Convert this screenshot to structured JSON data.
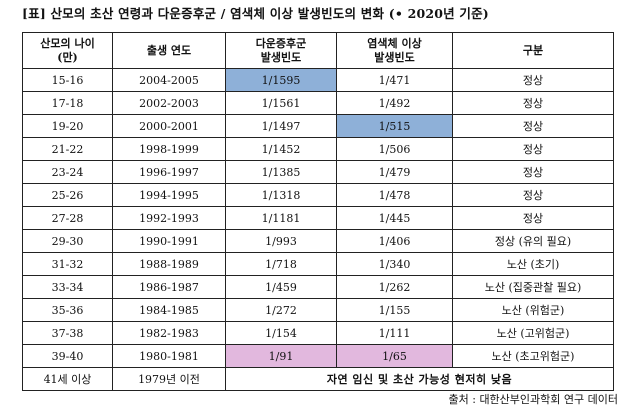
{
  "title": "[표] 산모의 초산 연령과 다운증후군 / 염색체 이상 발생빈도의 변화 (• 2020년 기준)",
  "headers": {
    "age_line1": "산모의 나이",
    "age_line2": "(만)",
    "year": "출생 연도",
    "down_line1": "다운증후군",
    "down_line2": "발생빈도",
    "chrom_line1": "염색체 이상",
    "chrom_line2": "발생빈도",
    "class": "구분"
  },
  "rows": [
    {
      "age": "15-16",
      "year": "2004-2005",
      "down": "1/1595",
      "chrom": "1/471",
      "class": "정상"
    },
    {
      "age": "17-18",
      "year": "2002-2003",
      "down": "1/1561",
      "chrom": "1/492",
      "class": "정상"
    },
    {
      "age": "19-20",
      "year": "2000-2001",
      "down": "1/1497",
      "chrom": "1/515",
      "class": "정상"
    },
    {
      "age": "21-22",
      "year": "1998-1999",
      "down": "1/1452",
      "chrom": "1/506",
      "class": "정상"
    },
    {
      "age": "23-24",
      "year": "1996-1997",
      "down": "1/1385",
      "chrom": "1/479",
      "class": "정상"
    },
    {
      "age": "25-26",
      "year": "1994-1995",
      "down": "1/1318",
      "chrom": "1/478",
      "class": "정상"
    },
    {
      "age": "27-28",
      "year": "1992-1993",
      "down": "1/1181",
      "chrom": "1/445",
      "class": "정상"
    },
    {
      "age": "29-30",
      "year": "1990-1991",
      "down": "1/993",
      "chrom": "1/406",
      "class": "정상 (유의 필요)"
    },
    {
      "age": "31-32",
      "year": "1988-1989",
      "down": "1/718",
      "chrom": "1/340",
      "class": "노산 (초기)"
    },
    {
      "age": "33-34",
      "year": "1986-1987",
      "down": "1/459",
      "chrom": "1/262",
      "class": "노산 (집중관찰 필요)"
    },
    {
      "age": "35-36",
      "year": "1984-1985",
      "down": "1/272",
      "chrom": "1/155",
      "class": "노산 (위험군)"
    },
    {
      "age": "37-38",
      "year": "1982-1983",
      "down": "1/154",
      "chrom": "1/111",
      "class": "노산 (고위험군)"
    },
    {
      "age": "39-40",
      "year": "1980-1981",
      "down": "1/91",
      "chrom": "1/65",
      "class": "노산 (초고위험군)"
    }
  ],
  "last_row": {
    "age": "41세 이상",
    "year": "1979년 이전",
    "note": "자연 임신 및 초산 가능성 현저히 낮음"
  },
  "highlights": {
    "blue": "#8eb0d8",
    "pink": "#e2b8de"
  },
  "source": "출처 : 대한산부인과학회 연구 데이터"
}
